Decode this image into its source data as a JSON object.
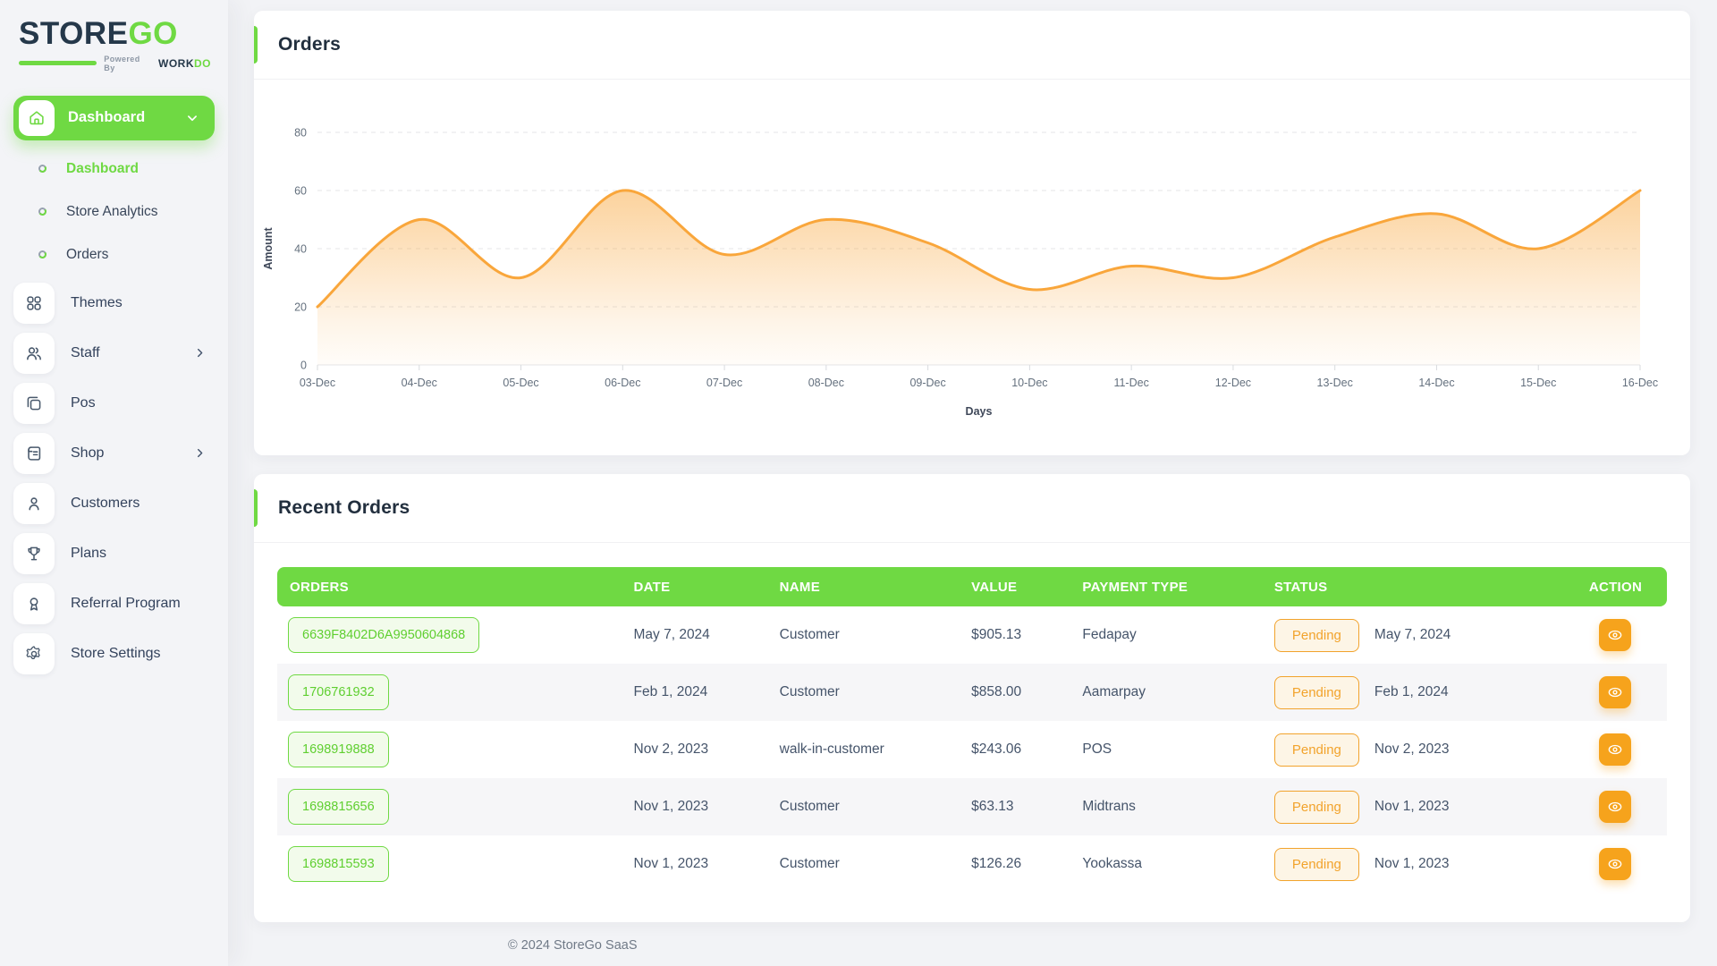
{
  "app": {
    "brand_store": "STORE",
    "brand_go": "GO",
    "powered_by": "Powered By",
    "powered_brand_dark": "WORK",
    "powered_brand_green": "DO",
    "footer": "© 2024 StoreGo SaaS"
  },
  "colors": {
    "primary_green": "#6fd943",
    "orange_line": "#f9a63b",
    "orange_badge": "#f2a32c",
    "navy_text": "#222f3e"
  },
  "sidebar": {
    "group": {
      "label": "Dashboard",
      "expanded": true
    },
    "sub_items": [
      {
        "label": "Dashboard",
        "active": true
      },
      {
        "label": "Store Analytics",
        "active": false
      },
      {
        "label": "Orders",
        "active": false
      }
    ],
    "items": [
      {
        "label": "Themes",
        "icon": "grid-icon",
        "chevron": false
      },
      {
        "label": "Staff",
        "icon": "staff-icon",
        "chevron": true
      },
      {
        "label": "Pos",
        "icon": "pos-icon",
        "chevron": false
      },
      {
        "label": "Shop",
        "icon": "shop-icon",
        "chevron": true
      },
      {
        "label": "Customers",
        "icon": "customer-icon",
        "chevron": false
      },
      {
        "label": "Plans",
        "icon": "trophy-icon",
        "chevron": false
      },
      {
        "label": "Referral Program",
        "icon": "referral-icon",
        "chevron": false
      },
      {
        "label": "Store Settings",
        "icon": "gear-icon",
        "chevron": false
      }
    ]
  },
  "orders_card": {
    "title": "Orders"
  },
  "chart_data": {
    "type": "area",
    "title": "Orders",
    "x": [
      "03-Dec",
      "04-Dec",
      "05-Dec",
      "06-Dec",
      "07-Dec",
      "08-Dec",
      "09-Dec",
      "10-Dec",
      "11-Dec",
      "12-Dec",
      "13-Dec",
      "14-Dec",
      "15-Dec",
      "16-Dec"
    ],
    "series": [
      {
        "name": "Orders",
        "values": [
          20,
          50,
          30,
          60,
          38,
          50,
          42,
          26,
          34,
          30,
          44,
          52,
          40,
          60
        ]
      }
    ],
    "xlabel": "Days",
    "ylabel": "Amount",
    "ylim": [
      0,
      80
    ],
    "yticks": [
      0,
      20,
      40,
      60,
      80
    ],
    "grid": "horizontal-dashed",
    "legend": "none",
    "line_color": "#f9a63b",
    "fill": "orange gradient fade to white"
  },
  "recent_orders": {
    "title": "Recent Orders",
    "columns": [
      "ORDERS",
      "DATE",
      "NAME",
      "VALUE",
      "PAYMENT TYPE",
      "STATUS",
      "ACTION"
    ],
    "rows": [
      {
        "order_id": "6639F8402D6A9950604868",
        "date": "May 7, 2024",
        "name": "Customer",
        "value": "$905.13",
        "payment_type": "Fedapay",
        "status": "Pending",
        "status_date": "May 7, 2024"
      },
      {
        "order_id": "1706761932",
        "date": "Feb 1, 2024",
        "name": "Customer",
        "value": "$858.00",
        "payment_type": "Aamarpay",
        "status": "Pending",
        "status_date": "Feb 1, 2024"
      },
      {
        "order_id": "1698919888",
        "date": "Nov 2, 2023",
        "name": "walk-in-customer",
        "value": "$243.06",
        "payment_type": "POS",
        "status": "Pending",
        "status_date": "Nov 2, 2023"
      },
      {
        "order_id": "1698815656",
        "date": "Nov 1, 2023",
        "name": "Customer",
        "value": "$63.13",
        "payment_type": "Midtrans",
        "status": "Pending",
        "status_date": "Nov 1, 2023"
      },
      {
        "order_id": "1698815593",
        "date": "Nov 1, 2023",
        "name": "Customer",
        "value": "$126.26",
        "payment_type": "Yookassa",
        "status": "Pending",
        "status_date": "Nov 1, 2023"
      }
    ]
  }
}
